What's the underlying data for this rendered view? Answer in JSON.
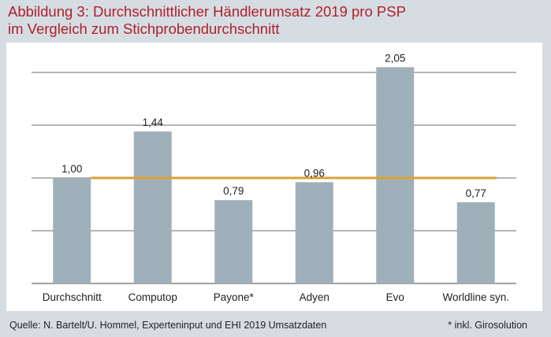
{
  "title_line1": "Abbildung 3: Durchschnittlicher Händlerumsatz 2019 pro PSP",
  "title_line2": "im Vergleich zum Stichprobendurchschnitt",
  "source": "Quelle: N. Bartelt/U. Hommel, Experteninput und EHI 2019 Umsatzdaten",
  "footnote": "* inkl. Girosolution",
  "colors": {
    "title": "#b01f2a",
    "bar": "#9fb0ba",
    "reference_line": "#d9a233",
    "gridline": "#6b6b6b",
    "panel_background": "#ffffff",
    "page_background": "#d5dde3"
  },
  "chart_data": {
    "type": "bar",
    "title": "Abbildung 3: Durchschnittlicher Händlerumsatz 2019 pro PSP im Vergleich zum Stichprobendurchschnitt",
    "categories": [
      "Durchschnitt",
      "Computop",
      "Payone*",
      "Adyen",
      "Evo",
      "Worldline syn."
    ],
    "values": [
      1.0,
      1.44,
      0.79,
      0.96,
      2.05,
      0.77
    ],
    "value_labels": [
      "1,00",
      "1,44",
      "0,79",
      "0,96",
      "2,05",
      "0,77"
    ],
    "reference_line": 1.0,
    "ylim": [
      0,
      2.1
    ],
    "yticks": [
      0,
      0.5,
      1.0,
      1.5,
      2.0
    ],
    "show_ytick_labels": false,
    "grid": true,
    "xlabel": "",
    "ylabel": ""
  }
}
